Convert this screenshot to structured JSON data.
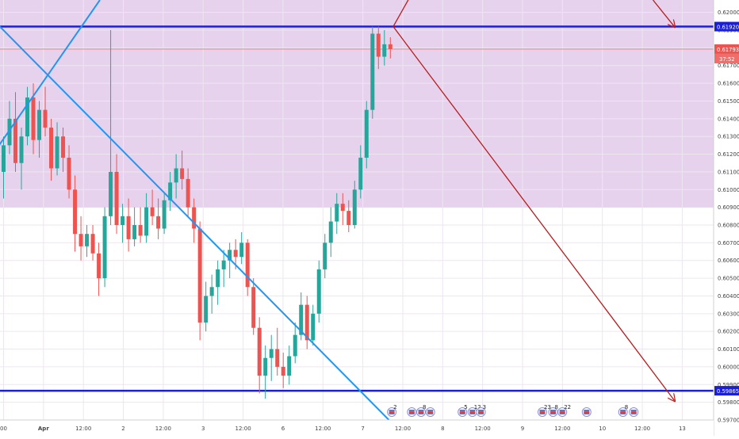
{
  "chart_data": {
    "type": "candlestick",
    "y_range": [
      0.597,
      0.6207
    ],
    "price_ticks": [
      "0.62000",
      "0.61900",
      "0.61800",
      "0.61700",
      "0.61600",
      "0.61500",
      "0.61400",
      "0.61300",
      "0.61200",
      "0.61100",
      "0.61000",
      "0.60900",
      "0.60800",
      "0.60700",
      "0.60600",
      "0.60500",
      "0.60400",
      "0.60300",
      "0.60200",
      "0.60100",
      "0.60000",
      "0.59900",
      "0.59800",
      "0.59700"
    ],
    "time_ticks": [
      "00",
      "Apr",
      "12:00",
      "2",
      "12:00",
      "3",
      "12:00",
      "6",
      "12:00",
      "7",
      "12:00",
      "8",
      "12:00",
      "9",
      "12:00",
      "10",
      "12:00",
      "13"
    ],
    "resistance_label": "0.61920",
    "support_label": "0.59865",
    "current_price_label": "0.61793",
    "countdown_label": "37:52",
    "zone": {
      "top": 0.6207,
      "bottom": 0.609
    },
    "levels": {
      "resistance": 0.6192,
      "support": 0.59865,
      "current": 0.61793
    },
    "candles": [
      [
        0.611,
        0.613,
        0.6095,
        0.6125
      ],
      [
        0.6125,
        0.615,
        0.612,
        0.614
      ],
      [
        0.614,
        0.6155,
        0.611,
        0.6115
      ],
      [
        0.6115,
        0.6135,
        0.61,
        0.613
      ],
      [
        0.613,
        0.6158,
        0.6125,
        0.6152
      ],
      [
        0.6152,
        0.616,
        0.612,
        0.6128
      ],
      [
        0.6128,
        0.615,
        0.6118,
        0.6145
      ],
      [
        0.6145,
        0.6158,
        0.613,
        0.6135
      ],
      [
        0.6135,
        0.614,
        0.6105,
        0.6112
      ],
      [
        0.6112,
        0.6138,
        0.6108,
        0.613
      ],
      [
        0.613,
        0.6135,
        0.611,
        0.6118
      ],
      [
        0.6118,
        0.6125,
        0.6095,
        0.61
      ],
      [
        0.61,
        0.6108,
        0.6065,
        0.6075
      ],
      [
        0.6075,
        0.6085,
        0.606,
        0.6068
      ],
      [
        0.6068,
        0.608,
        0.6062,
        0.6075
      ],
      [
        0.6075,
        0.608,
        0.606,
        0.6064
      ],
      [
        0.6064,
        0.607,
        0.604,
        0.605
      ],
      [
        0.605,
        0.609,
        0.6045,
        0.6085
      ],
      [
        0.6085,
        0.619,
        0.608,
        0.611
      ],
      [
        0.611,
        0.612,
        0.6075,
        0.608
      ],
      [
        0.608,
        0.6092,
        0.607,
        0.6085
      ],
      [
        0.6085,
        0.6095,
        0.6065,
        0.6072
      ],
      [
        0.6072,
        0.609,
        0.6068,
        0.608
      ],
      [
        0.608,
        0.609,
        0.607,
        0.6074
      ],
      [
        0.6074,
        0.6098,
        0.607,
        0.609
      ],
      [
        0.609,
        0.61,
        0.608,
        0.6085
      ],
      [
        0.6085,
        0.6095,
        0.6072,
        0.6078
      ],
      [
        0.6078,
        0.6098,
        0.6075,
        0.6094
      ],
      [
        0.6094,
        0.611,
        0.6088,
        0.6104
      ],
      [
        0.6104,
        0.612,
        0.6095,
        0.6112
      ],
      [
        0.6112,
        0.6122,
        0.61,
        0.6106
      ],
      [
        0.6106,
        0.6112,
        0.6085,
        0.609
      ],
      [
        0.609,
        0.6095,
        0.607,
        0.6078
      ],
      [
        0.6078,
        0.6082,
        0.6015,
        0.6025
      ],
      [
        0.6025,
        0.6048,
        0.602,
        0.604
      ],
      [
        0.604,
        0.6052,
        0.603,
        0.6045
      ],
      [
        0.6045,
        0.606,
        0.6035,
        0.6055
      ],
      [
        0.6055,
        0.6066,
        0.6045,
        0.606
      ],
      [
        0.606,
        0.607,
        0.605,
        0.6066
      ],
      [
        0.6066,
        0.6072,
        0.6055,
        0.6062
      ],
      [
        0.6062,
        0.6076,
        0.6058,
        0.607
      ],
      [
        0.607,
        0.6072,
        0.604,
        0.6045
      ],
      [
        0.6045,
        0.605,
        0.6018,
        0.6022
      ],
      [
        0.6022,
        0.6028,
        0.5985,
        0.5995
      ],
      [
        0.5995,
        0.6012,
        0.5982,
        0.6005
      ],
      [
        0.6005,
        0.6018,
        0.5992,
        0.601
      ],
      [
        0.601,
        0.6022,
        0.5995,
        0.6
      ],
      [
        0.6,
        0.6008,
        0.5988,
        0.5995
      ],
      [
        0.5995,
        0.6012,
        0.599,
        0.6006
      ],
      [
        0.6006,
        0.6025,
        0.6002,
        0.6018
      ],
      [
        0.6018,
        0.6042,
        0.6015,
        0.6035
      ],
      [
        0.6035,
        0.604,
        0.601,
        0.6015
      ],
      [
        0.6015,
        0.6035,
        0.6012,
        0.603
      ],
      [
        0.603,
        0.606,
        0.6025,
        0.6055
      ],
      [
        0.6055,
        0.6075,
        0.605,
        0.607
      ],
      [
        0.607,
        0.609,
        0.6062,
        0.6082
      ],
      [
        0.6082,
        0.6098,
        0.6075,
        0.6092
      ],
      [
        0.6092,
        0.6098,
        0.608,
        0.6088
      ],
      [
        0.6088,
        0.6094,
        0.6076,
        0.608
      ],
      [
        0.608,
        0.6105,
        0.6078,
        0.61
      ],
      [
        0.61,
        0.6125,
        0.6095,
        0.6118
      ],
      [
        0.6118,
        0.615,
        0.6112,
        0.6145
      ],
      [
        0.6145,
        0.6192,
        0.614,
        0.6188
      ],
      [
        0.6188,
        0.6192,
        0.6168,
        0.6175
      ],
      [
        0.6175,
        0.619,
        0.617,
        0.6182
      ],
      [
        0.6182,
        0.6186,
        0.6174,
        0.61793
      ]
    ],
    "lines": [
      {
        "name": "rising-trendline",
        "color": "#2196f3",
        "x1": -0.01,
        "y1": 0.612,
        "x2": 0.14,
        "y2": 0.6207
      },
      {
        "name": "falling-trendline",
        "color": "#2196f3",
        "x1": -0.01,
        "y1": 0.6196,
        "x2": 0.545,
        "y2": 0.597
      },
      {
        "name": "projection-arrow-up",
        "color": "#b71c1c",
        "x1": 0.551,
        "y1": 0.6192,
        "x2": 0.572,
        "y2": 0.6207
      },
      {
        "name": "projection-arrow-down",
        "color": "#b71c1c",
        "x1": 0.551,
        "y1": 0.6192,
        "x2": 0.945,
        "y2": 0.5981
      },
      {
        "name": "top-right-arrow",
        "color": "#b71c1c",
        "x1": 0.915,
        "y1": 0.6207,
        "x2": 0.945,
        "y2": 0.6192
      }
    ],
    "event_markers": [
      {
        "x": 0.549,
        "count": "2"
      },
      {
        "x": 0.577,
        "count": ""
      },
      {
        "x": 0.59,
        "count": "8"
      },
      {
        "x": 0.603,
        "count": ""
      },
      {
        "x": 0.648,
        "count": "5"
      },
      {
        "x": 0.662,
        "count": "12"
      },
      {
        "x": 0.674,
        "count": "3"
      },
      {
        "x": 0.76,
        "count": "23"
      },
      {
        "x": 0.775,
        "count": "8"
      },
      {
        "x": 0.788,
        "count": "22"
      },
      {
        "x": 0.822,
        "count": ""
      },
      {
        "x": 0.873,
        "count": "8"
      },
      {
        "x": 0.888,
        "count": ""
      }
    ]
  }
}
